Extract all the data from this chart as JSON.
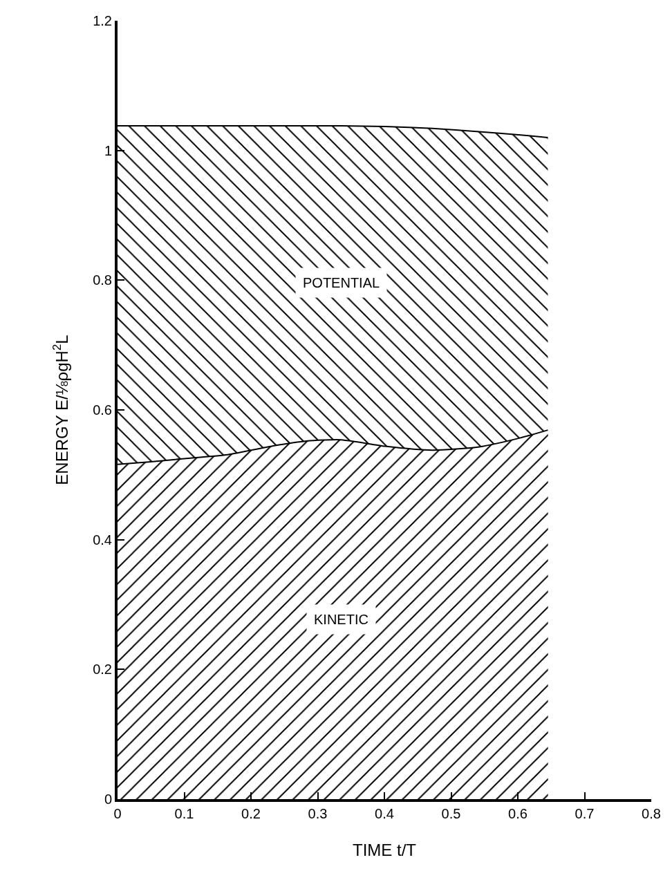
{
  "chart_data": {
    "type": "area",
    "stacked": true,
    "xlabel": "TIME t/T",
    "ylabel": "ENERGY E/⅛ρgH$^{2}$L",
    "x": [
      0,
      0.05,
      0.1,
      0.165,
      0.236,
      0.283,
      0.335,
      0.401,
      0.472,
      0.542,
      0.604,
      0.645
    ],
    "series": [
      {
        "name": "KINETIC",
        "color": "#000000",
        "values": [
          0.516,
          0.52,
          0.525,
          0.531,
          0.545,
          0.552,
          0.554,
          0.544,
          0.538,
          0.543,
          0.557,
          0.569
        ]
      },
      {
        "name": "POTENTIAL",
        "color": "#000000",
        "values": [
          0.522,
          0.518,
          0.513,
          0.507,
          0.493,
          0.486,
          0.484,
          0.493,
          0.496,
          0.486,
          0.467,
          0.451
        ]
      }
    ],
    "xlim": [
      0,
      0.8
    ],
    "xticks": [
      0,
      0.1,
      0.2,
      0.3,
      0.4,
      0.5,
      0.6,
      0.7,
      0.8
    ],
    "ylim": [
      0,
      1.2
    ],
    "yticks": [
      0,
      0.2,
      0.4,
      0.6,
      0.8,
      1,
      1.2
    ],
    "grid": false,
    "legend": false
  }
}
